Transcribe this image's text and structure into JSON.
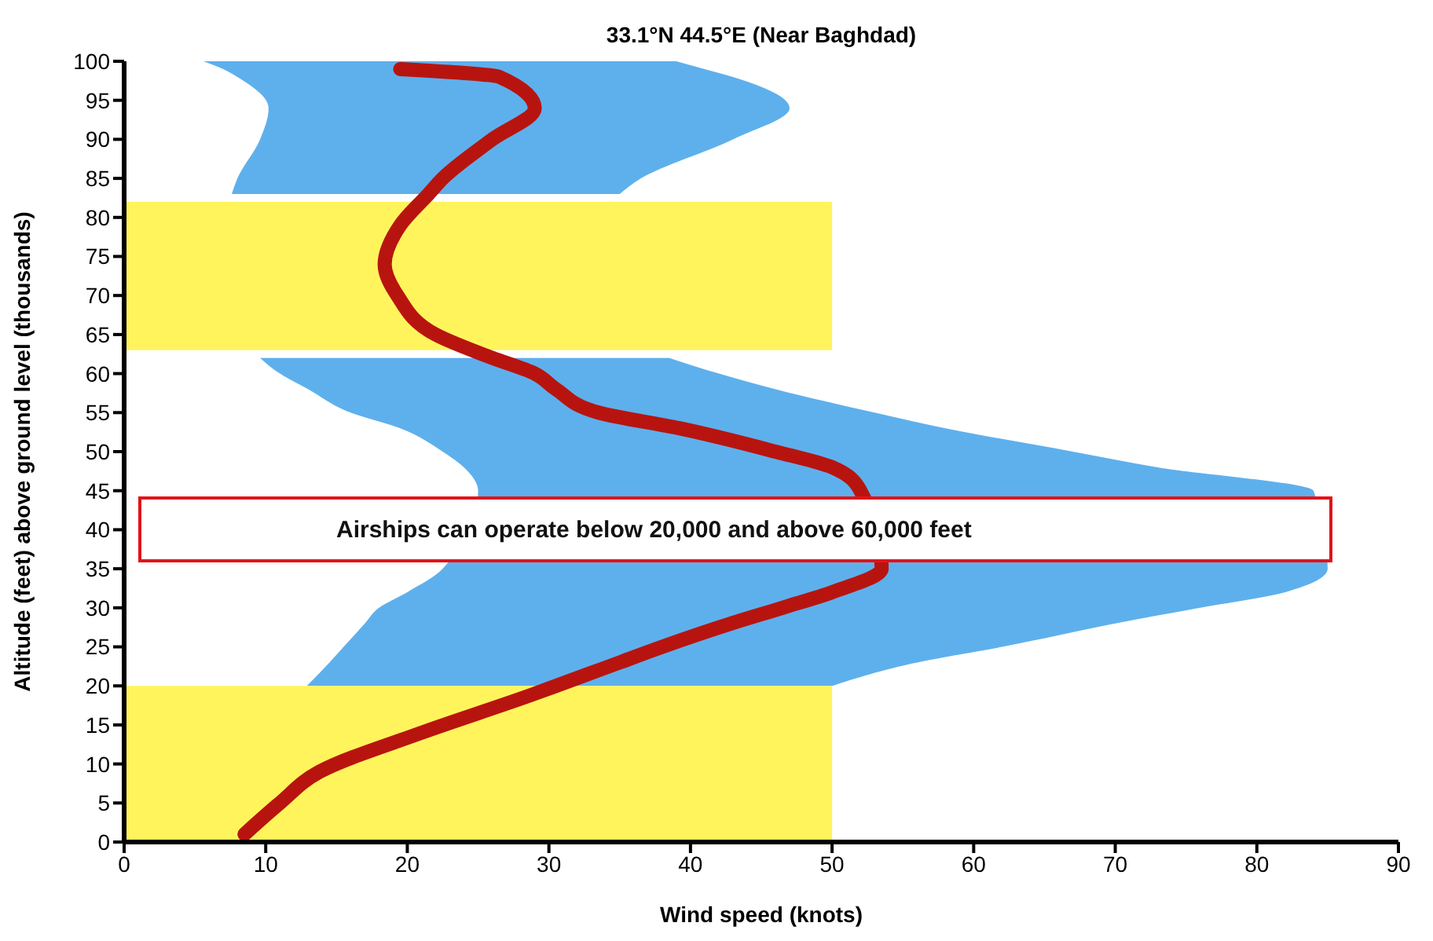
{
  "chart_data": {
    "type": "line",
    "orientation": "horizontal",
    "title": "33.1°N 44.5°E (Near Baghdad)",
    "xlabel": "Wind speed (knots)",
    "ylabel": "Altitude (feet) above ground level (thousands)",
    "xlim": [
      0,
      90
    ],
    "xticks": [
      0,
      10,
      20,
      30,
      40,
      50,
      60,
      70,
      80,
      90
    ],
    "ylim": [
      0,
      100
    ],
    "yticks": [
      0,
      5,
      10,
      15,
      20,
      25,
      30,
      35,
      40,
      45,
      50,
      55,
      60,
      65,
      70,
      75,
      80,
      85,
      90,
      95,
      100
    ],
    "marker": "none",
    "line_style": "solid",
    "series": [
      {
        "type": "area",
        "color": "#5eb0ec",
        "x": [
          20,
          23,
          25,
          28,
          30,
          32,
          35,
          45,
          48,
          50,
          53,
          55,
          58,
          60,
          62,
          72,
          83,
          85,
          90,
          94,
          98,
          99,
          100
        ],
        "values": [
          null,
          null,
          null,
          null,
          null,
          null,
          null,
          null,
          null,
          null,
          null,
          null,
          null,
          null,
          null,
          null,
          null,
          null,
          null,
          null,
          null,
          null,
          null
        ],
        "lower": [
          12.9,
          14.5,
          15.5,
          17,
          18,
          20,
          22.5,
          25,
          24,
          22.5,
          19.5,
          16,
          13,
          11,
          9.6,
          null,
          7.6,
          8,
          9.6,
          10.2,
          8,
          7,
          5.6
        ],
        "upper": [
          50,
          56,
          62,
          70,
          76,
          82,
          85,
          84,
          73,
          67,
          58,
          53,
          46,
          42,
          38.5,
          null,
          35,
          36.5,
          43,
          47,
          43,
          41,
          39
        ]
      },
      {
        "type": "area",
        "color": "#fff45c",
        "x": [
          0,
          20
        ],
        "values": [
          50,
          50
        ]
      },
      {
        "type": "area",
        "color": "#fff45c",
        "x": [
          63,
          82
        ],
        "values": [
          50,
          50
        ]
      },
      {
        "type": "line",
        "color": "#b8140f",
        "x": [
          1,
          5,
          9,
          14,
          19,
          20,
          23,
          25,
          28,
          30,
          32,
          35,
          38,
          42,
          45,
          48,
          50,
          53,
          55,
          58,
          60,
          62,
          65,
          70,
          74,
          79,
          83,
          85,
          90,
          94,
          98,
          99
        ],
        "values": [
          8.5,
          11,
          13.8,
          21,
          29,
          30.5,
          35,
          38,
          42.9,
          46.5,
          50,
          53.5,
          null,
          null,
          52,
          50,
          46,
          39.2,
          33.5,
          30.5,
          29,
          26,
          22,
          19.3,
          18.4,
          19.5,
          21.5,
          22.5,
          26,
          29,
          26.5,
          19.5
        ]
      }
    ],
    "annotations": [
      "Airships can operate below 20,000 and above 60,000 feet"
    ]
  }
}
